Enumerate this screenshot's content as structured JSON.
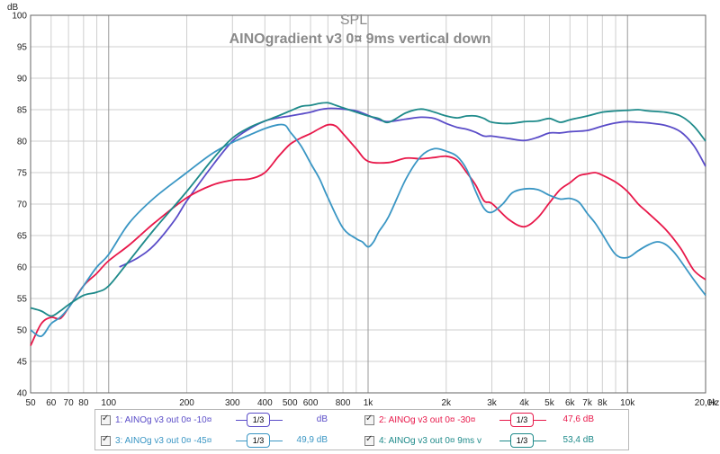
{
  "chart_data": {
    "type": "line",
    "title": "SPL",
    "subtitle": "AINOgradient v3 0¤ 9ms vertical down",
    "ylabel": "dB",
    "xunit": "Hz",
    "xscale": "log",
    "xlim": [
      50,
      20000
    ],
    "ylim": [
      40,
      100
    ],
    "grid": true,
    "y_ticks": [
      "40",
      "45",
      "50",
      "55",
      "60",
      "65",
      "70",
      "75",
      "80",
      "85",
      "90",
      "95",
      "100"
    ],
    "x_ticks": [
      {
        "v": 50,
        "label": "50"
      },
      {
        "v": 60,
        "label": "60"
      },
      {
        "v": 70,
        "label": "70"
      },
      {
        "v": 80,
        "label": "80"
      },
      {
        "v": 100,
        "label": "100"
      },
      {
        "v": 200,
        "label": "200"
      },
      {
        "v": 300,
        "label": "300"
      },
      {
        "v": 400,
        "label": "400"
      },
      {
        "v": 500,
        "label": "500"
      },
      {
        "v": 600,
        "label": "600"
      },
      {
        "v": 800,
        "label": "800"
      },
      {
        "v": 1000,
        "label": "1k"
      },
      {
        "v": 2000,
        "label": "2k"
      },
      {
        "v": 3000,
        "label": "3k"
      },
      {
        "v": 4000,
        "label": "4k"
      },
      {
        "v": 5000,
        "label": "5k"
      },
      {
        "v": 6000,
        "label": "6k"
      },
      {
        "v": 7000,
        "label": "7k"
      },
      {
        "v": 8000,
        "label": "8k"
      },
      {
        "v": 10000,
        "label": "10k"
      },
      {
        "v": 20000,
        "label": "20,0k"
      }
    ],
    "series": [
      {
        "name": "1: AINOg v3 out 0¤ -10¤",
        "color": "#5a4cc8",
        "x": [
          110,
          130,
          150,
          180,
          200,
          250,
          300,
          350,
          400,
          450,
          500,
          550,
          600,
          650,
          700,
          750,
          800,
          900,
          1000,
          1100,
          1200,
          1400,
          1600,
          1800,
          2000,
          2200,
          2400,
          2600,
          2800,
          3000,
          3500,
          4000,
          4500,
          5000,
          5500,
          6000,
          7000,
          8000,
          9000,
          10000,
          11000,
          12000,
          14000,
          16000,
          18000,
          20000
        ],
        "y": [
          60,
          61.5,
          63.5,
          67.5,
          70.5,
          76,
          80,
          82,
          83.2,
          83.7,
          84,
          84.3,
          84.6,
          85,
          85.2,
          85.2,
          85.1,
          84.8,
          84.1,
          83.4,
          83.1,
          83.5,
          83.8,
          83.6,
          82.8,
          82.2,
          81.9,
          81.4,
          80.8,
          80.8,
          80.4,
          80.1,
          80.6,
          81.3,
          81.3,
          81.5,
          81.7,
          82.4,
          82.9,
          83.1,
          83.0,
          82.9,
          82.5,
          81.5,
          79.3,
          76
        ]
      },
      {
        "name": "2: AINOg v3 out 0¤ -30¤",
        "color": "#e8184a",
        "x": [
          50,
          55,
          60,
          65,
          70,
          80,
          90,
          100,
          120,
          150,
          200,
          250,
          300,
          350,
          400,
          450,
          500,
          550,
          600,
          650,
          700,
          750,
          800,
          900,
          1000,
          1200,
          1400,
          1600,
          1800,
          2000,
          2200,
          2400,
          2600,
          2800,
          3000,
          3500,
          4000,
          4500,
          5000,
          5500,
          6000,
          6500,
          7000,
          7500,
          8000,
          9000,
          10000,
          11000,
          12000,
          14000,
          16000,
          18000,
          20000
        ],
        "y": [
          47.5,
          51,
          52,
          51.8,
          53.5,
          57,
          59,
          61,
          63.5,
          67,
          71,
          73,
          73.8,
          74,
          75,
          77.5,
          79.5,
          80.5,
          81.2,
          82,
          82.6,
          82.4,
          81.2,
          78.8,
          76.8,
          76.6,
          77.3,
          77.2,
          77.4,
          77.6,
          77,
          75,
          73,
          70.5,
          70.1,
          67.5,
          66.4,
          67.8,
          70.2,
          72.3,
          73.4,
          74.5,
          74.8,
          75,
          74.6,
          73.5,
          72,
          70,
          68.6,
          66,
          63,
          59.5,
          58
        ]
      },
      {
        "name": "3: AINOg v3 out 0¤ -45¤",
        "color": "#3a96c4",
        "x": [
          50,
          55,
          60,
          65,
          70,
          80,
          90,
          100,
          120,
          150,
          200,
          250,
          300,
          350,
          400,
          450,
          480,
          500,
          550,
          600,
          650,
          700,
          800,
          900,
          950,
          1000,
          1050,
          1100,
          1200,
          1400,
          1600,
          1800,
          2000,
          2200,
          2400,
          2600,
          2800,
          3000,
          3300,
          3600,
          4000,
          4500,
          5000,
          5500,
          6000,
          6500,
          7000,
          7500,
          8000,
          9000,
          10000,
          11000,
          12000,
          13000,
          14000,
          15000,
          16000,
          18000,
          20000
        ],
        "y": [
          50,
          49,
          51,
          52,
          53.5,
          57,
          60,
          62,
          67,
          71,
          75,
          78,
          79.8,
          81,
          82,
          82.6,
          82.5,
          81.5,
          79.3,
          76.5,
          74,
          71,
          66.2,
          64.5,
          64,
          63.2,
          64,
          65.6,
          68,
          74,
          77.6,
          78.8,
          78.4,
          77.6,
          75.5,
          72,
          69.3,
          68.7,
          70,
          71.8,
          72.4,
          72.3,
          71.4,
          70.8,
          70.9,
          70.3,
          68.5,
          67,
          65.2,
          62,
          61.5,
          62.6,
          63.5,
          64,
          63.6,
          62.5,
          61,
          58,
          55.5
        ]
      },
      {
        "name": "4: AINOg v3 out 0¤ 9ms v",
        "color": "#1e8a8a",
        "x": [
          50,
          55,
          60,
          65,
          70,
          80,
          90,
          100,
          120,
          150,
          200,
          250,
          300,
          350,
          400,
          450,
          500,
          550,
          600,
          650,
          700,
          750,
          800,
          900,
          1000,
          1100,
          1200,
          1400,
          1600,
          1800,
          2000,
          2200,
          2400,
          2600,
          2800,
          3000,
          3500,
          4000,
          4500,
          5000,
          5500,
          6000,
          7000,
          8000,
          9000,
          10000,
          11000,
          12000,
          14000,
          16000,
          18000,
          20000
        ],
        "y": [
          53.5,
          53,
          52.2,
          53,
          54,
          55.5,
          56,
          57,
          61,
          66,
          72,
          77,
          80.5,
          82.2,
          83.2,
          84,
          84.8,
          85.5,
          85.7,
          86,
          86.1,
          85.7,
          85.3,
          84.6,
          84,
          83.6,
          83,
          84.5,
          85.1,
          84.6,
          84,
          83.7,
          84,
          84,
          83.6,
          83,
          82.8,
          83.1,
          83.2,
          83.6,
          83,
          83.4,
          84,
          84.6,
          84.8,
          84.9,
          85,
          84.8,
          84.6,
          84,
          82.4,
          80
        ]
      }
    ]
  },
  "legend": [
    {
      "check": "✓",
      "name": "1: AINOg v3 out 0¤ -10¤",
      "smoothing": "1/3",
      "value": "dB",
      "color": "#5a4cc8"
    },
    {
      "check": "✓",
      "name": "2: AINOg v3 out 0¤ -30¤",
      "smoothing": "1/3",
      "value": "47,6 dB",
      "color": "#e8184a"
    },
    {
      "check": "✓",
      "name": "3: AINOg v3 out 0¤ -45¤",
      "smoothing": "1/3",
      "value": "49,9 dB",
      "color": "#3a96c4"
    },
    {
      "check": "✓",
      "name": "4: AINOg v3 out 0¤ 9ms v",
      "smoothing": "1/3",
      "value": "53,4 dB",
      "color": "#1e8a8a"
    }
  ]
}
